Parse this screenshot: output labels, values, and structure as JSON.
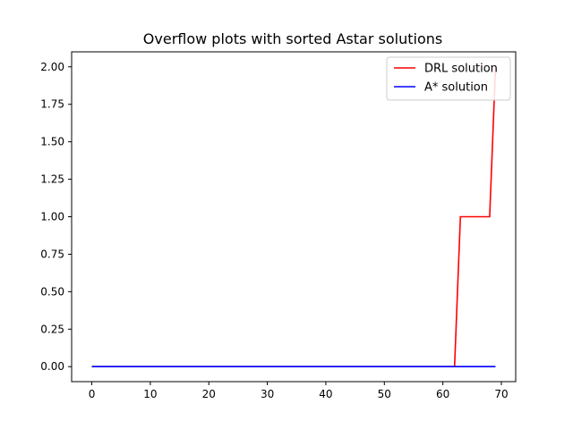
{
  "chart_data": {
    "type": "line",
    "title": "Overflow plots with sorted Astar solutions",
    "xlabel": "",
    "ylabel": "",
    "xlim": [
      -3.45,
      72.45
    ],
    "ylim": [
      -0.1,
      2.1
    ],
    "xticks": [
      0,
      10,
      20,
      30,
      40,
      50,
      60,
      70
    ],
    "yticks": [
      0.0,
      0.25,
      0.5,
      0.75,
      1.0,
      1.25,
      1.5,
      1.75,
      2.0
    ],
    "ytick_labels": [
      "0.00",
      "0.25",
      "0.50",
      "0.75",
      "1.00",
      "1.25",
      "1.50",
      "1.75",
      "2.00"
    ],
    "grid": false,
    "legend_position": "top-right",
    "series": [
      {
        "name": "DRL solution",
        "color": "#ff0000",
        "x": [
          0,
          62,
          63,
          68,
          69
        ],
        "y": [
          0,
          0,
          1,
          1,
          2
        ]
      },
      {
        "name": "A* solution",
        "color": "#0000ff",
        "x": [
          0,
          69
        ],
        "y": [
          0,
          0
        ]
      }
    ]
  }
}
